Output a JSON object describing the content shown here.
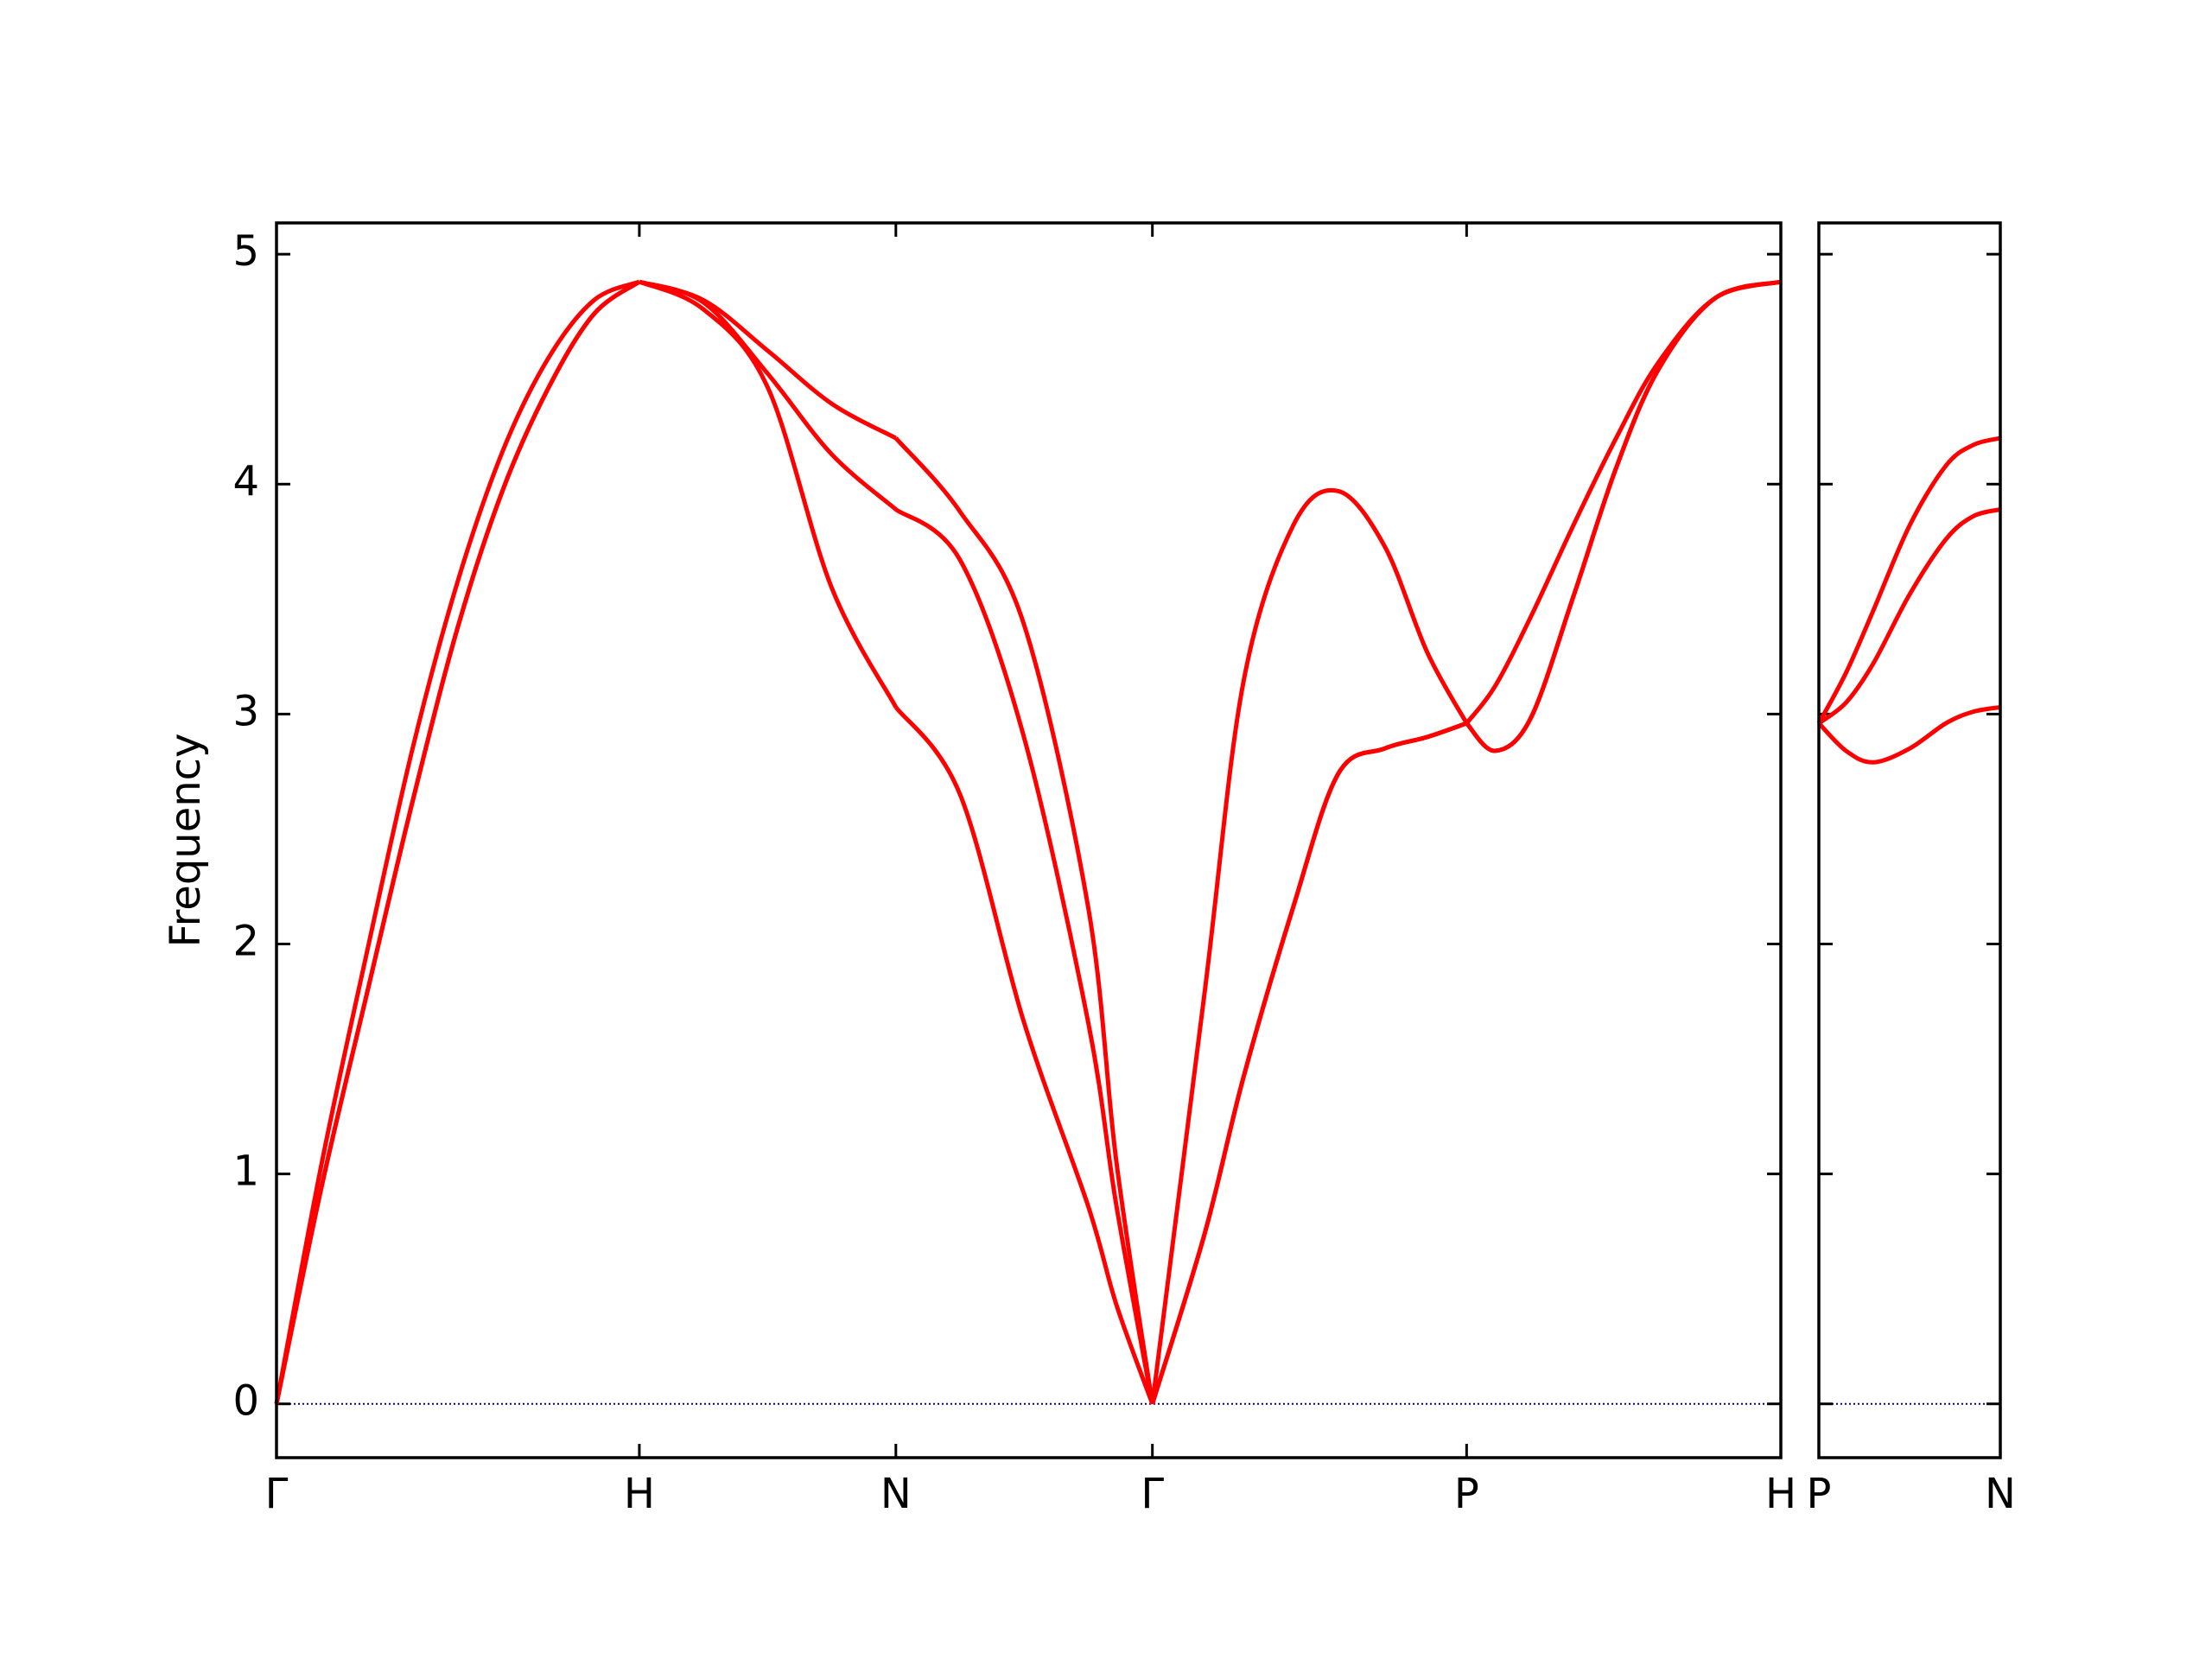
{
  "chart_data": [
    {
      "type": "line",
      "ylabel": "Frequency",
      "x": [
        0,
        0.125,
        0.25,
        0.375,
        0.5,
        0.625,
        0.75,
        0.875,
        1,
        1.177,
        1.354,
        1.53,
        1.707,
        1.884,
        2.06,
        2.237,
        2.315,
        2.414,
        2.558,
        2.665,
        2.802,
        2.926,
        3.054,
        3.171,
        3.28,
        3.358,
        3.456,
        3.574,
        3.692,
        3.809,
        3.966,
        4.146
      ],
      "series": [
        {
          "color": "#ff0000",
          "values": [
            0,
            0.95,
            1.79,
            2.62,
            3.38,
            3.98,
            4.42,
            4.74,
            4.88,
            4.76,
            4.42,
            3.55,
            3.03,
            2.65,
            1.66,
            0.86,
            0.43,
            0,
            0.74,
            1.42,
            2.16,
            2.74,
            2.85,
            2.9,
            2.96,
            2.84,
            2.98,
            3.51,
            4.07,
            4.5,
            4.81,
            4.88
          ]
        },
        {
          "color": "#ff0000",
          "values": [
            0,
            0.95,
            1.79,
            2.62,
            3.38,
            3.98,
            4.42,
            4.74,
            4.88,
            4.79,
            4.48,
            4.13,
            3.89,
            3.67,
            2.9,
            1.66,
            0.86,
            0,
            0.74,
            1.42,
            2.16,
            2.74,
            2.85,
            2.9,
            2.96,
            2.84,
            2.98,
            3.51,
            4.07,
            4.5,
            4.81,
            4.88
          ]
        },
        {
          "color": "#ff0000",
          "values": [
            0,
            1.05,
            1.97,
            2.85,
            3.58,
            4.15,
            4.55,
            4.8,
            4.88,
            4.8,
            4.58,
            4.35,
            4.2,
            3.88,
            3.39,
            2.16,
            1.05,
            0,
            1.79,
            3.14,
            3.82,
            3.97,
            3.73,
            3.27,
            2.96,
            3.12,
            3.42,
            3.82,
            4.2,
            4.53,
            4.81,
            4.88
          ]
        }
      ],
      "xlim": [
        0,
        4.146
      ],
      "xticks": [
        {
          "value": 0,
          "label": "Γ"
        },
        {
          "value": 1,
          "label": "H"
        },
        {
          "value": 1.707,
          "label": "N"
        },
        {
          "value": 2.414,
          "label": "Γ"
        },
        {
          "value": 3.28,
          "label": "P"
        },
        {
          "value": 4.146,
          "label": "H"
        }
      ],
      "ylim": [
        -0.234,
        5.136
      ],
      "yticks": [
        0,
        1,
        2,
        3,
        4,
        5
      ],
      "zero_line": true,
      "zero_line_color": "#00008b"
    },
    {
      "type": "line",
      "x": [
        0,
        0.075,
        0.15,
        0.25,
        0.35,
        0.425,
        0.5
      ],
      "series": [
        {
          "color": "#ff0000",
          "values": [
            2.96,
            2.84,
            2.79,
            2.85,
            2.96,
            3.01,
            3.03
          ]
        },
        {
          "color": "#ff0000",
          "values": [
            2.96,
            3.05,
            3.22,
            3.52,
            3.76,
            3.86,
            3.89
          ]
        },
        {
          "color": "#ff0000",
          "values": [
            2.96,
            3.18,
            3.45,
            3.82,
            4.08,
            4.17,
            4.2
          ]
        }
      ],
      "xlim": [
        0,
        0.5
      ],
      "xticks": [
        {
          "value": 0,
          "label": "P"
        },
        {
          "value": 0.5,
          "label": "N"
        }
      ],
      "ylim": [
        -0.234,
        5.136
      ],
      "yticks": [
        0,
        1,
        2,
        3,
        4,
        5
      ],
      "ytick_labels": false,
      "zero_line": true,
      "zero_line_color": "#00008b"
    }
  ]
}
